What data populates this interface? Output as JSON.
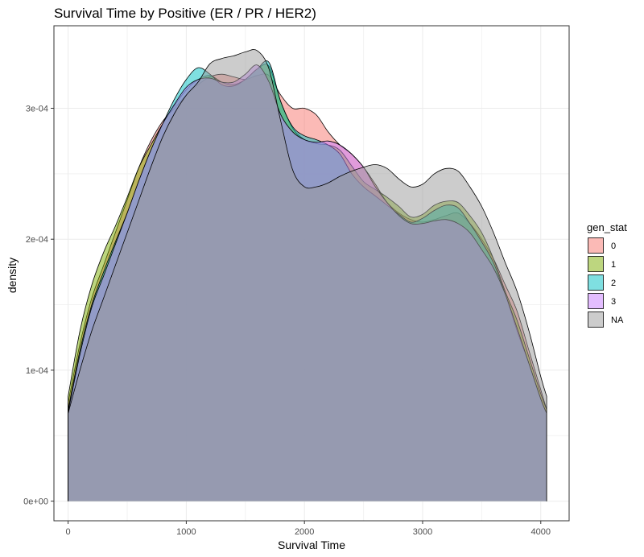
{
  "chart_data": {
    "type": "area",
    "title": "Survival Time by Positive (ER / PR / HER2)",
    "xlabel": "Survival Time",
    "ylabel": "density",
    "xlim": [
      -120,
      4240
    ],
    "ylim": [
      -1.5e-05,
      0.000363
    ],
    "x_ticks": [
      0,
      1000,
      2000,
      3000,
      4000
    ],
    "x_tick_labels": [
      "0",
      "1000",
      "2000",
      "3000",
      "4000"
    ],
    "y_ticks": [
      0,
      0.0001,
      0.0002,
      0.0003
    ],
    "y_tick_labels": [
      "0e+00",
      "1e-04",
      "2e-04",
      "3e-04"
    ],
    "grid": true,
    "legend": {
      "title": "gen_stat",
      "position": "right"
    },
    "series": [
      {
        "name": "0",
        "color": "#F8766D",
        "x": [
          0,
          100,
          200,
          300,
          400,
          500,
          600,
          700,
          800,
          900,
          1000,
          1100,
          1200,
          1300,
          1400,
          1500,
          1600,
          1700,
          1800,
          1900,
          2000,
          2100,
          2200,
          2300,
          2400,
          2500,
          2600,
          2700,
          2800,
          2900,
          3000,
          3100,
          3200,
          3300,
          3400,
          3500,
          3600,
          3700,
          3800,
          3900,
          4000,
          4050
        ],
        "y": [
          7.5e-05,
          0.00012,
          0.000155,
          0.00018,
          0.000205,
          0.00023,
          0.000255,
          0.000275,
          0.00029,
          0.0003,
          0.00031,
          0.000318,
          0.000324,
          0.000326,
          0.000324,
          0.000322,
          0.000325,
          0.000325,
          0.00031,
          0.0003,
          0.0003,
          0.000295,
          0.000282,
          0.000272,
          0.000265,
          0.000255,
          0.000242,
          0.000228,
          0.00022,
          0.000215,
          0.000213,
          0.000215,
          0.000218,
          0.00022,
          0.000212,
          0.0002,
          0.000185,
          0.000165,
          0.000145,
          0.000115,
          8.5e-05,
          7e-05
        ]
      },
      {
        "name": "1",
        "color": "#7CAE00",
        "x": [
          0,
          100,
          200,
          300,
          400,
          500,
          600,
          700,
          800,
          900,
          1000,
          1100,
          1200,
          1300,
          1400,
          1500,
          1600,
          1700,
          1800,
          1900,
          2000,
          2100,
          2200,
          2300,
          2400,
          2500,
          2600,
          2700,
          2800,
          2900,
          3000,
          3100,
          3200,
          3300,
          3400,
          3500,
          3600,
          3700,
          3800,
          3900,
          4000,
          4050
        ],
        "y": [
          8e-05,
          0.00013,
          0.000165,
          0.00019,
          0.00021,
          0.000232,
          0.000255,
          0.000272,
          0.000288,
          0.000302,
          0.000314,
          0.000322,
          0.000325,
          0.00032,
          0.000318,
          0.000322,
          0.00033,
          0.000332,
          0.000305,
          0.000285,
          0.000276,
          0.000273,
          0.000272,
          0.000268,
          0.000256,
          0.000244,
          0.000238,
          0.000232,
          0.000225,
          0.000217,
          0.000219,
          0.000226,
          0.000229,
          0.000228,
          0.000218,
          0.000205,
          0.000185,
          0.00016,
          0.000138,
          0.00011,
          8.2e-05,
          7e-05
        ]
      },
      {
        "name": "2",
        "color": "#00BFC4",
        "x": [
          0,
          100,
          200,
          300,
          400,
          500,
          600,
          700,
          800,
          900,
          1000,
          1100,
          1200,
          1300,
          1400,
          1500,
          1600,
          1700,
          1800,
          1900,
          2000,
          2100,
          2200,
          2300,
          2400,
          2500,
          2600,
          2700,
          2800,
          2900,
          3000,
          3100,
          3200,
          3300,
          3400,
          3500,
          3600,
          3700,
          3800,
          3900,
          4000,
          4050
        ],
        "y": [
          7e-05,
          0.000115,
          0.00015,
          0.000175,
          0.000198,
          0.00022,
          0.000245,
          0.000268,
          0.000288,
          0.000307,
          0.000322,
          0.000331,
          0.000326,
          0.000318,
          0.000317,
          0.000322,
          0.00033,
          0.000335,
          0.000305,
          0.000286,
          0.000279,
          0.000276,
          0.000272,
          0.000265,
          0.00025,
          0.00024,
          0.000233,
          0.000226,
          0.000219,
          0.000213,
          0.000216,
          0.000222,
          0.000226,
          0.000224,
          0.000212,
          0.000198,
          0.000182,
          0.000158,
          0.00013,
          0.000105,
          7.8e-05,
          6.7e-05
        ]
      },
      {
        "name": "3",
        "color": "#C77CFF",
        "x": [
          0,
          100,
          200,
          300,
          400,
          500,
          600,
          700,
          800,
          900,
          1000,
          1100,
          1200,
          1300,
          1400,
          1500,
          1600,
          1700,
          1800,
          1900,
          2000,
          2100,
          2200,
          2300,
          2400,
          2500,
          2600,
          2700,
          2800,
          2900,
          3000,
          3100,
          3200,
          3300,
          3400,
          3500,
          3600,
          3700,
          3800,
          3900,
          4000,
          4050
        ],
        "y": [
          6.8e-05,
          0.000112,
          0.000148,
          0.000172,
          0.000196,
          0.00022,
          0.000245,
          0.000268,
          0.000288,
          0.000303,
          0.000316,
          0.000322,
          0.000323,
          0.00032,
          0.00032,
          0.000326,
          0.000333,
          0.00032,
          0.000295,
          0.000282,
          0.000276,
          0.000274,
          0.000275,
          0.000272,
          0.000265,
          0.000255,
          0.00024,
          0.000228,
          0.000218,
          0.000212,
          0.000212,
          0.000214,
          0.000215,
          0.000212,
          0.000205,
          0.000192,
          0.000178,
          0.000158,
          0.000132,
          0.000105,
          7.8e-05,
          6.7e-05
        ]
      },
      {
        "name": "NA",
        "color": "#999999",
        "x": [
          0,
          100,
          200,
          300,
          400,
          500,
          600,
          700,
          800,
          900,
          1000,
          1100,
          1200,
          1300,
          1400,
          1500,
          1600,
          1700,
          1800,
          1900,
          2000,
          2100,
          2200,
          2300,
          2400,
          2500,
          2600,
          2700,
          2800,
          2900,
          3000,
          3100,
          3200,
          3300,
          3400,
          3500,
          3600,
          3700,
          3800,
          3900,
          4000,
          4050
        ],
        "y": [
          6.7e-05,
          0.0001,
          0.00013,
          0.000155,
          0.00018,
          0.000205,
          0.00023,
          0.000255,
          0.000278,
          0.000296,
          0.00031,
          0.00032,
          0.000334,
          0.000338,
          0.00034,
          0.000343,
          0.000344,
          0.00033,
          0.00029,
          0.000253,
          0.00024,
          0.00024,
          0.000243,
          0.000248,
          0.000252,
          0.000255,
          0.000257,
          0.000254,
          0.000246,
          0.00024,
          0.000242,
          0.00025,
          0.000254,
          0.000252,
          0.00024,
          0.000225,
          0.000205,
          0.000182,
          0.00016,
          0.00013,
          9.5e-05,
          8e-05
        ]
      }
    ]
  }
}
